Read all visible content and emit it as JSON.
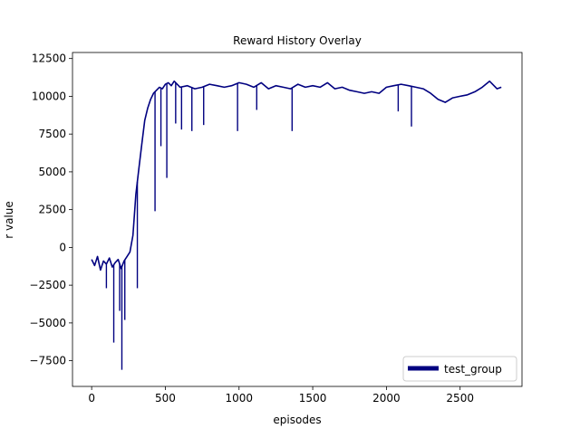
{
  "chart_data": {
    "type": "line",
    "title": "Reward History Overlay",
    "xlabel": "episodes",
    "ylabel": "r value",
    "xlim": [
      -130,
      2920
    ],
    "ylim": [
      -9200,
      12900
    ],
    "xticks": [
      0,
      500,
      1000,
      1500,
      2000,
      2500
    ],
    "yticks": [
      -7500,
      -5000,
      -2500,
      0,
      2500,
      5000,
      7500,
      10000,
      12500
    ],
    "xtick_labels": [
      "0",
      "500",
      "1000",
      "1500",
      "2000",
      "2500"
    ],
    "ytick_labels": [
      "−7500",
      "−5000",
      "−2500",
      "0",
      "2500",
      "5000",
      "7500",
      "10000",
      "12500"
    ],
    "grid": false,
    "legend_position": "lower-right",
    "series": [
      {
        "name": "test_group",
        "color": "#000080",
        "x": [
          0,
          20,
          40,
          60,
          80,
          100,
          120,
          140,
          160,
          180,
          200,
          220,
          240,
          260,
          280,
          300,
          320,
          340,
          360,
          380,
          400,
          420,
          440,
          460,
          480,
          500,
          520,
          540,
          560,
          580,
          600,
          650,
          700,
          750,
          800,
          850,
          900,
          950,
          1000,
          1050,
          1100,
          1150,
          1200,
          1250,
          1300,
          1350,
          1400,
          1450,
          1500,
          1550,
          1600,
          1650,
          1700,
          1750,
          1800,
          1850,
          1900,
          1950,
          2000,
          2050,
          2100,
          2150,
          2200,
          2250,
          2300,
          2350,
          2400,
          2450,
          2500,
          2550,
          2600,
          2650,
          2700,
          2750,
          2780
        ],
        "values": [
          -800,
          -1200,
          -600,
          -1500,
          -900,
          -1100,
          -700,
          -1300,
          -1000,
          -800,
          -1400,
          -900,
          -600,
          -300,
          800,
          3500,
          5200,
          6800,
          8400,
          9200,
          9800,
          10200,
          10400,
          10600,
          10500,
          10800,
          10900,
          10700,
          11000,
          10800,
          10600,
          10700,
          10500,
          10600,
          10800,
          10700,
          10600,
          10700,
          10900,
          10800,
          10600,
          10900,
          10500,
          10700,
          10600,
          10500,
          10800,
          10600,
          10700,
          10600,
          10900,
          10500,
          10600,
          10400,
          10300,
          10200,
          10300,
          10200,
          10600,
          10700,
          10800,
          10700,
          10600,
          10500,
          10200,
          9800,
          9600,
          9900,
          10000,
          10100,
          10300,
          10600,
          11000,
          10500,
          10600
        ]
      }
    ],
    "spikes": [
      {
        "x": 100,
        "y": -2700
      },
      {
        "x": 150,
        "y": -6300
      },
      {
        "x": 190,
        "y": -4200
      },
      {
        "x": 205,
        "y": -8100
      },
      {
        "x": 225,
        "y": -4800
      },
      {
        "x": 310,
        "y": -2700
      },
      {
        "x": 430,
        "y": 2400
      },
      {
        "x": 470,
        "y": 6700
      },
      {
        "x": 510,
        "y": 4600
      },
      {
        "x": 570,
        "y": 8200
      },
      {
        "x": 610,
        "y": 7800
      },
      {
        "x": 680,
        "y": 7700
      },
      {
        "x": 760,
        "y": 8100
      },
      {
        "x": 990,
        "y": 7700
      },
      {
        "x": 1120,
        "y": 9100
      },
      {
        "x": 1360,
        "y": 7700
      },
      {
        "x": 2080,
        "y": 9000
      },
      {
        "x": 2170,
        "y": 8000
      }
    ]
  }
}
